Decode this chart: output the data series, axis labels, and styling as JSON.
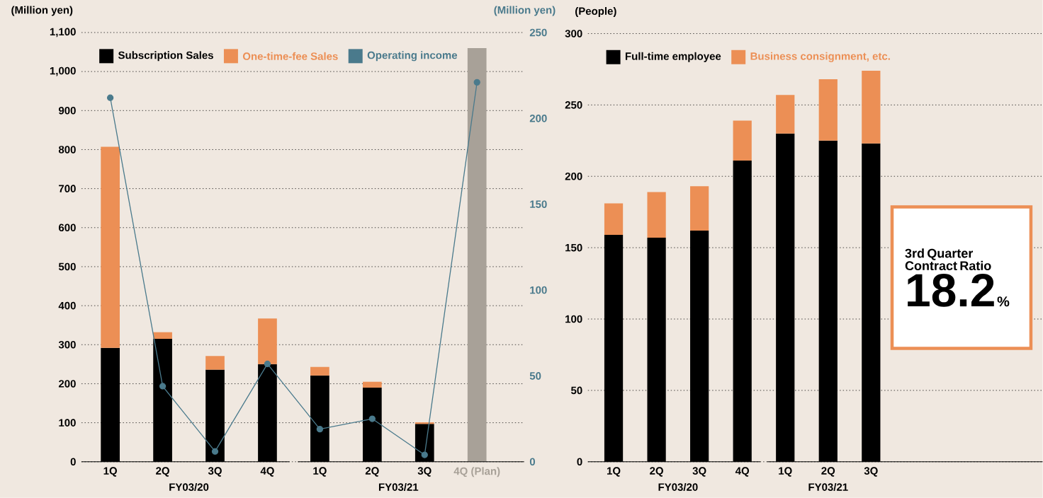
{
  "chart_data": [
    {
      "type": "bar",
      "stacked": true,
      "categories": [
        "1Q",
        "2Q",
        "3Q",
        "4Q",
        "1Q",
        "2Q",
        "3Q",
        "4Q (Plan)"
      ],
      "ylabel": "(Million yen)",
      "y2label": "(Million yen)",
      "ylim": [
        0,
        1100
      ],
      "yticks": [
        0,
        100,
        200,
        300,
        400,
        500,
        600,
        700,
        800,
        900,
        {
          "value": 1000,
          "label": "1,000"
        },
        {
          "value": 1100,
          "label": "1,100"
        }
      ],
      "y2lim": [
        0,
        250
      ],
      "y2ticks": [
        0,
        50,
        100,
        150,
        200,
        250
      ],
      "grid": "y",
      "legend": "top left",
      "marker": "circle",
      "annotations": [
        "FY03/20",
        "FY03/21"
      ],
      "series": [
        {
          "name": "Subscription Sales",
          "color": "#000000",
          "values": [
            292,
            315,
            236,
            250,
            221,
            190,
            97,
            null
          ]
        },
        {
          "name": "One-time-fee Sales",
          "color": "#ec8f55",
          "values": [
            515,
            17,
            35,
            117,
            22,
            15,
            4,
            null
          ]
        },
        {
          "color": "#a8a198",
          "values": [
            null,
            null,
            null,
            null,
            null,
            null,
            null,
            1060
          ]
        },
        {
          "name": "Operating income",
          "type": "line",
          "axis": "y2",
          "color": "#4a7a8c",
          "values": [
            212,
            44,
            6,
            57,
            19,
            25,
            4,
            221
          ]
        }
      ]
    },
    {
      "type": "bar",
      "stacked": true,
      "categories": [
        "1Q",
        "2Q",
        "3Q",
        "4Q",
        "1Q",
        "2Q",
        "3Q"
      ],
      "ylabel": "(People)",
      "ylim": [
        0,
        300
      ],
      "yticks": [
        0,
        50,
        100,
        150,
        200,
        250,
        300
      ],
      "grid": "y",
      "legend": "top left",
      "annotations": [
        "FY03/20",
        "FY03/21",
        "3rd Quarter Contract Ratio",
        "18.2",
        "%"
      ],
      "series": [
        {
          "name": "Full-time employee",
          "color": "#000000",
          "values": [
            159,
            157,
            162,
            211,
            230,
            225,
            223
          ]
        },
        {
          "name": "Business consignment, etc.",
          "color": "#ec8f55",
          "values": [
            22,
            32,
            31,
            28,
            27,
            43,
            51
          ]
        }
      ]
    }
  ]
}
